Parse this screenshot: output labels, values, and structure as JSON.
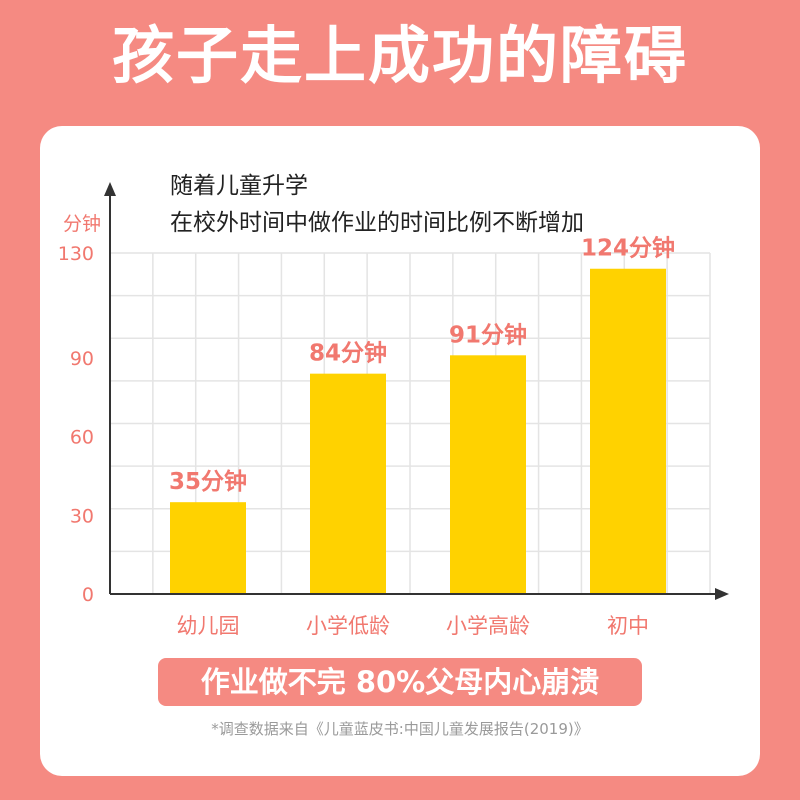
{
  "header": {
    "title": "孩子走上成功的障碍"
  },
  "banner": {
    "text": "作业做不完 80%父母内心崩溃"
  },
  "footnote": {
    "text": "*调查数据来自《儿童蓝皮书:中国儿童发展报告(2019)》"
  },
  "colors": {
    "background": "#f58a82",
    "bar": "#ffd200",
    "accent_text": "#f1786f",
    "grid": "#e4e4e4",
    "axis": "#333333"
  },
  "chart_data": {
    "type": "bar",
    "title_lines": [
      "随着儿童升学",
      "在校外时间中做作业的时间比例不断增加"
    ],
    "ylabel": "分钟",
    "xlabel": "",
    "categories": [
      "幼儿园",
      "小学低龄",
      "小学高龄",
      "初中"
    ],
    "values": [
      35,
      84,
      91,
      124
    ],
    "data_labels": [
      "35分钟",
      "84分钟",
      "91分钟",
      "124分钟"
    ],
    "yticks": [
      0,
      30,
      60,
      90,
      130
    ],
    "ylim": [
      0,
      130
    ],
    "grid": true,
    "legend": "none"
  }
}
